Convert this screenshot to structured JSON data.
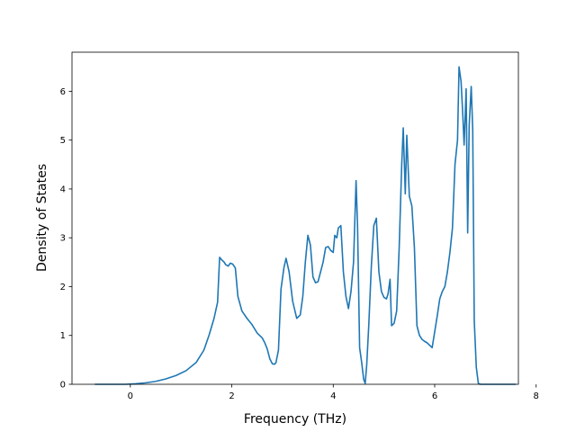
{
  "chart_data": {
    "type": "line",
    "title": "",
    "xlabel": "Frequency (THz)",
    "ylabel": "Density of States",
    "xlim": [
      -1.15,
      7.65
    ],
    "ylim": [
      0,
      6.8
    ],
    "xticks": [
      0,
      2,
      4,
      6,
      8
    ],
    "yticks": [
      0,
      1,
      2,
      3,
      4,
      5,
      6
    ],
    "grid": false,
    "legend": "none",
    "line_color": "#1f77b4",
    "series": [
      {
        "x": [
          -0.7,
          -0.4,
          -0.1,
          0.1,
          0.3,
          0.5,
          0.7,
          0.9,
          1.1,
          1.3,
          1.45,
          1.55,
          1.65,
          1.72,
          1.76,
          1.8,
          1.85,
          1.88,
          1.93,
          1.97,
          2.02,
          2.07,
          2.12,
          2.2,
          2.3,
          2.4,
          2.5,
          2.6,
          2.65,
          2.7,
          2.75,
          2.8,
          2.84,
          2.87,
          2.92,
          2.97,
          3.03,
          3.07,
          3.13,
          3.2,
          3.28,
          3.35,
          3.4,
          3.45,
          3.5,
          3.55,
          3.6,
          3.65,
          3.7,
          3.75,
          3.8,
          3.85,
          3.9,
          3.95,
          4.0,
          4.03,
          4.07,
          4.1,
          4.15,
          4.2,
          4.25,
          4.3,
          4.35,
          4.4,
          4.45,
          4.48,
          4.52,
          4.56,
          4.6,
          4.63,
          4.66,
          4.7,
          4.75,
          4.8,
          4.85,
          4.9,
          4.95,
          5.0,
          5.05,
          5.08,
          5.12,
          5.15,
          5.2,
          5.25,
          5.3,
          5.35,
          5.38,
          5.42,
          5.45,
          5.5,
          5.55,
          5.6,
          5.65,
          5.7,
          5.75,
          5.8,
          5.85,
          5.9,
          5.95,
          6.05,
          6.1,
          6.15,
          6.2,
          6.25,
          6.3,
          6.35,
          6.4,
          6.45,
          6.48,
          6.52,
          6.55,
          6.58,
          6.62,
          6.65,
          6.68,
          6.72,
          6.75,
          6.78,
          6.82,
          6.86,
          6.9,
          6.95,
          7.1,
          7.3,
          7.6
        ],
        "y": [
          0,
          0,
          0,
          0.01,
          0.03,
          0.06,
          0.11,
          0.18,
          0.28,
          0.45,
          0.7,
          1.0,
          1.35,
          1.68,
          2.6,
          2.55,
          2.5,
          2.45,
          2.42,
          2.48,
          2.46,
          2.38,
          1.8,
          1.5,
          1.35,
          1.22,
          1.05,
          0.95,
          0.85,
          0.72,
          0.52,
          0.42,
          0.41,
          0.44,
          0.7,
          1.95,
          2.4,
          2.58,
          2.3,
          1.7,
          1.35,
          1.42,
          1.8,
          2.5,
          3.05,
          2.85,
          2.2,
          2.08,
          2.1,
          2.3,
          2.5,
          2.8,
          2.82,
          2.74,
          2.7,
          3.05,
          3.0,
          3.2,
          3.25,
          2.3,
          1.8,
          1.55,
          1.9,
          2.5,
          4.17,
          3.2,
          0.75,
          0.45,
          0.1,
          0.02,
          0.4,
          1.2,
          2.4,
          3.25,
          3.4,
          2.3,
          1.9,
          1.78,
          1.75,
          1.85,
          2.15,
          1.2,
          1.25,
          1.5,
          2.8,
          4.5,
          5.25,
          3.9,
          5.1,
          3.85,
          3.65,
          2.8,
          1.2,
          1.0,
          0.92,
          0.88,
          0.85,
          0.8,
          0.75,
          1.4,
          1.75,
          1.9,
          2.0,
          2.3,
          2.7,
          3.2,
          4.5,
          5.0,
          6.5,
          6.2,
          5.6,
          4.9,
          6.05,
          3.1,
          5.3,
          6.1,
          5.2,
          1.3,
          0.35,
          0.02,
          0,
          0,
          0,
          0,
          0
        ]
      }
    ]
  }
}
